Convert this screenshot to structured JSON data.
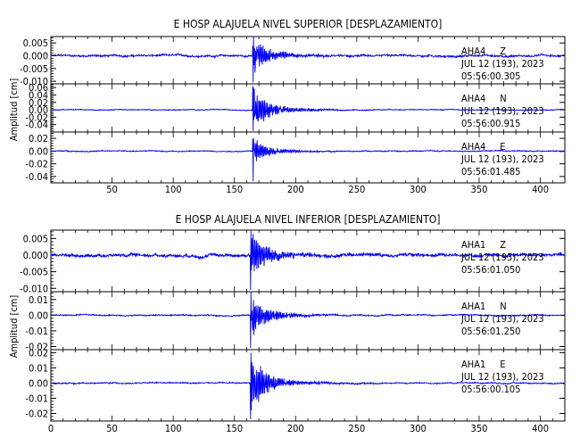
{
  "colors": {
    "trace": "#0000ff",
    "axes": "#000000",
    "background": "#ffffff"
  },
  "chart_data": [
    {
      "type": "line",
      "title": "E HOSP ALAJUELA NIVEL SUPERIOR [DESPLAZAMIENTO]",
      "ylabel": "Amplitud [cm]",
      "xlabel": "",
      "xlim": [
        0,
        420
      ],
      "x_ticks": [
        "50",
        "100",
        "150",
        "200",
        "250",
        "300",
        "350",
        "400"
      ],
      "grid": false,
      "event_onset_x": 165,
      "panels": [
        {
          "station": "AHA4",
          "component": "Z",
          "date": "JUL 12 (193), 2023",
          "time": "05:56:00.305",
          "ylim": [
            -0.011,
            0.0075
          ],
          "y_ticks": [
            "0.005",
            "0.000",
            "-0.005",
            "-0.010"
          ],
          "noise": 0.0005,
          "peak": 0.0075
        },
        {
          "station": "AHA4",
          "component": "N",
          "date": "JUL 12 (193), 2023",
          "time": "05:56:00.915",
          "ylim": [
            -0.06,
            0.07
          ],
          "y_ticks": [
            "0.06",
            "0.04",
            "0.02",
            "0.00",
            "-0.02",
            "-0.04"
          ],
          "noise": 0.0015,
          "peak": 0.06
        },
        {
          "station": "AHA4",
          "component": "E",
          "date": "JUL 12 (193), 2023",
          "time": "05:56:01.485",
          "ylim": [
            -0.05,
            0.03
          ],
          "y_ticks": [
            "0.02",
            "0.00",
            "-0.02",
            "-0.04"
          ],
          "noise": 0.001,
          "peak": 0.02
        }
      ]
    },
    {
      "type": "line",
      "title": "E HOSP ALAJUELA NIVEL INFERIOR [DESPLAZAMIENTO]",
      "ylabel": "Amplitud [cm]",
      "xlabel": "",
      "xlim": [
        0,
        420
      ],
      "x_ticks": [
        "0",
        "50",
        "100",
        "150",
        "200",
        "250",
        "300",
        "350",
        "400"
      ],
      "grid": false,
      "event_onset_x": 163,
      "panels": [
        {
          "station": "AHA1",
          "component": "Z",
          "date": "JUL 12 (193), 2023",
          "time": "05:56:01.050",
          "ylim": [
            -0.011,
            0.0075
          ],
          "y_ticks": [
            "0.005",
            "0.000",
            "-0.005",
            "-0.010"
          ],
          "noise": 0.0006,
          "peak": 0.0075
        },
        {
          "station": "AHA1",
          "component": "N",
          "date": "JUL 12 (193), 2023",
          "time": "05:56:01.250",
          "ylim": [
            -0.022,
            0.015
          ],
          "y_ticks": [
            "0.01",
            "0.00",
            "-0.01",
            "-0.02"
          ],
          "noise": 0.0005,
          "peak": 0.015
        },
        {
          "station": "AHA1",
          "component": "E",
          "date": "JUL 12 (193), 2023",
          "time": "05:56:00.105",
          "ylim": [
            -0.025,
            0.022
          ],
          "y_ticks": [
            "0.02",
            "0.01",
            "0.00",
            "-0.01",
            "-0.02"
          ],
          "noise": 0.0005,
          "peak": 0.02
        }
      ]
    }
  ]
}
